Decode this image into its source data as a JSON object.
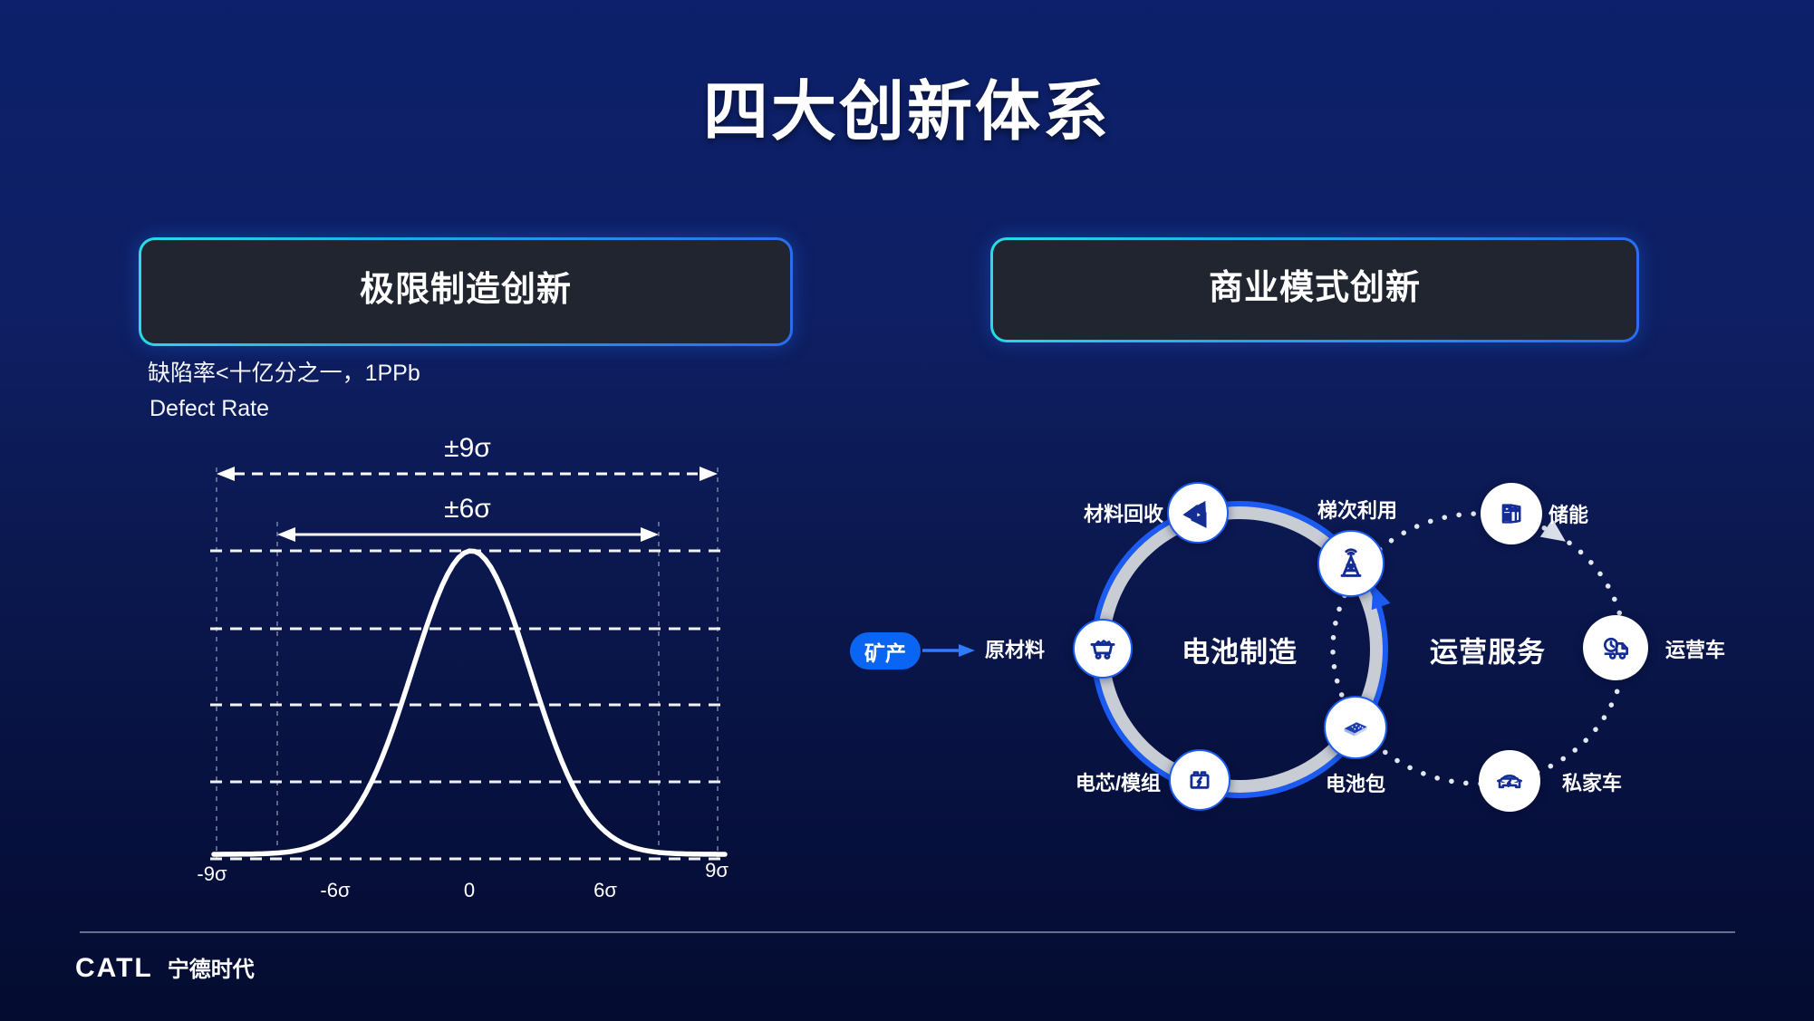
{
  "slide": {
    "title": "四大创新体系"
  },
  "left_panel": {
    "header": "极限制造创新",
    "note_cn": "缺陷率<十亿分之一，1PPb",
    "note_en": "Defect Rate"
  },
  "chart_data": {
    "type": "line",
    "title": "Defect Rate normal distribution curve",
    "curve": {
      "shape": "gaussian",
      "mean": 0,
      "peak_x_tick": "0"
    },
    "x_ticks": [
      "-9σ",
      "-6σ",
      "0",
      "6σ",
      "9σ"
    ],
    "annotations": [
      {
        "label": "±9σ",
        "from": "-9σ",
        "to": "9σ",
        "arrow_style": "dashed"
      },
      {
        "label": "±6σ",
        "from": "-6σ",
        "to": "6σ",
        "arrow_style": "solid"
      }
    ],
    "grid": "dashed horizontal levels and dashed vertical guides at ±6σ and ±9σ",
    "xlabel": "",
    "ylabel": ""
  },
  "right_panel": {
    "header": "商业模式创新",
    "badge": "矿产",
    "center_battery": "电池制造",
    "center_service": "运营服务",
    "nodes": {
      "raw": {
        "label": "原材料"
      },
      "recycle": {
        "label": "材料回收"
      },
      "cascade": {
        "label": "梯次利用"
      },
      "storage": {
        "label": "储能"
      },
      "cell": {
        "label": "电芯/模组"
      },
      "pack": {
        "label": "电池包"
      },
      "car": {
        "label": "私家车"
      },
      "op": {
        "label": "运营车"
      }
    }
  },
  "footer": {
    "logo": "CATL",
    "brand": "宁德时代"
  },
  "colors": {
    "background_top": "#0c206b",
    "background_bottom": "#040c30",
    "card_bg": "#20252f",
    "card_border_start": "#2bdce3",
    "card_border_end": "#2a6bf2",
    "accent_blue": "#1c5bf2",
    "ring_gray": "#c7ccd5",
    "badge_blue": "#0a66f2",
    "icon_navy": "#142d94"
  }
}
